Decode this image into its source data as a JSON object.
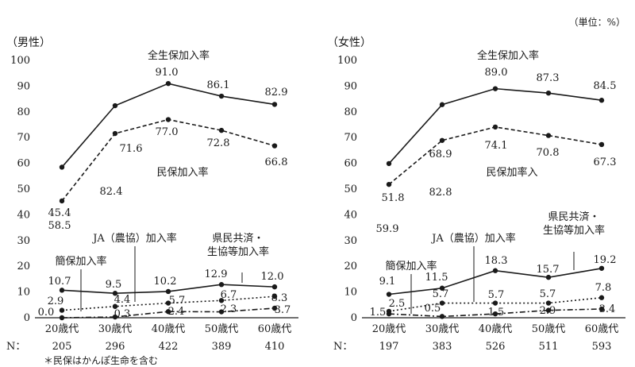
{
  "unit_label": "（単位：%）",
  "footnote": "＊民保はかんぽ生命を含む",
  "chart_data": [
    {
      "type": "line",
      "panel": "male",
      "title": "（男性）",
      "categories": [
        "20歳代",
        "30歳代",
        "40歳代",
        "50歳代",
        "60歳代"
      ],
      "n_prefix": "N：",
      "n_values": [
        "205",
        "296",
        "422",
        "389",
        "410"
      ],
      "ylim": [
        0,
        100
      ],
      "yticks": [
        "0",
        "10",
        "20",
        "30",
        "40",
        "50",
        "60",
        "70",
        "80",
        "90",
        "100"
      ],
      "series": [
        {
          "name": "全生保加入率",
          "style": "solid",
          "values": [
            58.5,
            82.4,
            91.0,
            86.1,
            82.9
          ],
          "labels": [
            "58.5",
            "82.4",
            "91.0",
            "86.1",
            "82.9"
          ]
        },
        {
          "name": "民保加入率",
          "style": "dashed",
          "values": [
            45.4,
            71.6,
            77.0,
            72.8,
            66.8
          ],
          "labels": [
            "45.4",
            "71.6",
            "77.0",
            "72.8",
            "66.8"
          ]
        },
        {
          "name": "県民共済・生協等加入率",
          "style": "solid",
          "values": [
            10.7,
            9.5,
            10.2,
            12.9,
            12.0
          ],
          "labels": [
            "10.7",
            "9.5",
            "10.2",
            "12.9",
            "12.0"
          ]
        },
        {
          "name": "JA（農協）加入率",
          "style": "dotted",
          "values": [
            2.9,
            4.4,
            5.7,
            6.7,
            8.3
          ],
          "labels": [
            "2.9",
            "4.4",
            "5.7",
            "6.7",
            "8.3"
          ]
        },
        {
          "name": "簡保加入率",
          "style": "dashdot",
          "values": [
            0.0,
            0.3,
            2.4,
            2.3,
            3.7
          ],
          "labels": [
            "0.0",
            "0.3",
            "2.4",
            "2.3",
            "3.7"
          ]
        }
      ]
    },
    {
      "type": "line",
      "panel": "female",
      "title": "（女性）",
      "categories": [
        "20歳代",
        "30歳代",
        "40歳代",
        "50歳代",
        "60歳代"
      ],
      "n_prefix": "N：",
      "n_values": [
        "197",
        "383",
        "526",
        "511",
        "593"
      ],
      "ylim": [
        0,
        100
      ],
      "yticks": [
        "0",
        "10",
        "20",
        "30",
        "40",
        "50",
        "60",
        "70",
        "80",
        "90",
        "100"
      ],
      "series": [
        {
          "name": "全生保加入率",
          "style": "solid",
          "values": [
            59.9,
            82.8,
            89.0,
            87.3,
            84.5
          ],
          "labels": [
            "59.9",
            "82.8",
            "89.0",
            "87.3",
            "84.5"
          ]
        },
        {
          "name": "民保加率入",
          "style": "dashed",
          "values": [
            51.8,
            68.9,
            74.1,
            70.8,
            67.3
          ],
          "labels": [
            "51.8",
            "68.9",
            "74.1",
            "70.8",
            "67.3"
          ]
        },
        {
          "name": "県民共済・生協等加入率",
          "style": "solid",
          "values": [
            9.1,
            11.5,
            18.3,
            15.7,
            19.2
          ],
          "labels": [
            "9.1",
            "11.5",
            "18.3",
            "15.7",
            "19.2"
          ]
        },
        {
          "name": "JA（農協）加入率",
          "style": "dotted",
          "values": [
            2.5,
            5.7,
            5.7,
            5.7,
            7.8
          ],
          "labels": [
            "2.5",
            "5.7",
            "5.7",
            "5.7",
            "7.8"
          ]
        },
        {
          "name": "簡保加入率",
          "style": "dashdot",
          "values": [
            1.5,
            0.5,
            1.5,
            2.9,
            3.4
          ],
          "labels": [
            "1.5",
            "0.5",
            "1.5",
            "2.9",
            "3.4"
          ]
        }
      ]
    }
  ]
}
